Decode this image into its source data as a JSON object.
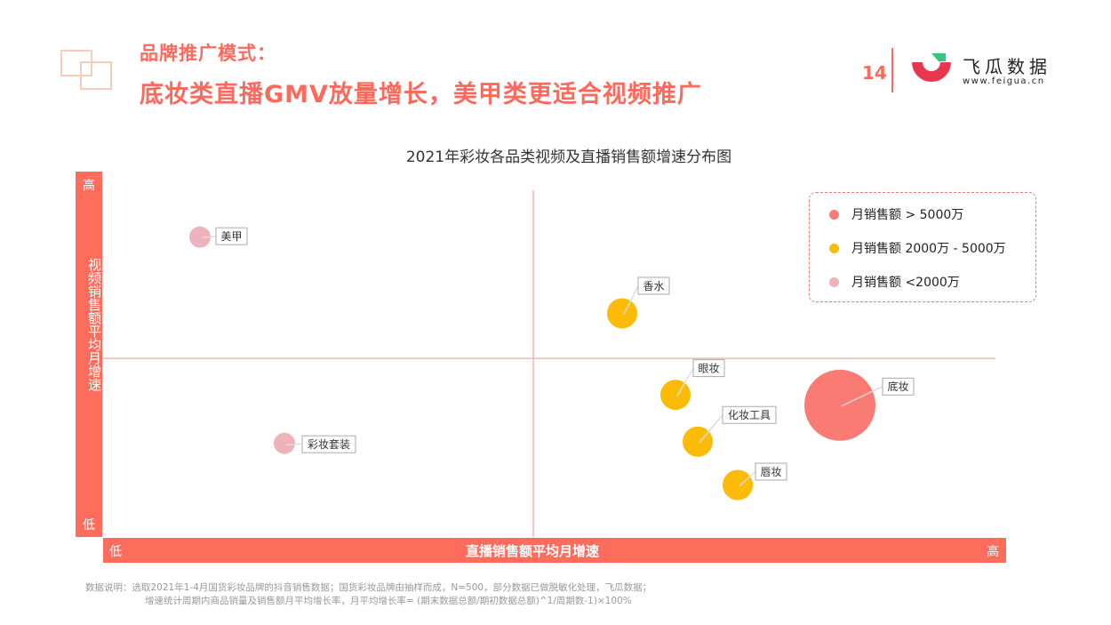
{
  "header": {
    "subtitle": "品牌推广模式：",
    "headline": "底妆类直播GMV放量增长，美甲类更适合视频推广",
    "page_number": "14"
  },
  "brand": {
    "name": "飞瓜数据",
    "url": "www.feigua.cn",
    "colors": {
      "accent": "#fb6a5c",
      "green": "#3ac47d",
      "red": "#e8364f"
    }
  },
  "chart_data": {
    "type": "scatter",
    "title": "2021年彩妆各品类视频及直播销售额增速分布图",
    "xlabel": "直播销售额平均月增速",
    "ylabel": "视频销售额平均月增速",
    "x_low": "低",
    "x_high": "高",
    "y_low": "低",
    "y_high": "高",
    "xlim": [
      0,
      100
    ],
    "ylim": [
      0,
      100
    ],
    "divider": {
      "x": 48,
      "y": 51.5
    },
    "legend_placement": "top-right",
    "legend": [
      {
        "label": "月销售额  > 5000万",
        "color": "#fa7a74"
      },
      {
        "label": "月销售额 2000万 - 5000万",
        "color": "#fcbb06"
      },
      {
        "label": "月销售额 <2000万",
        "color": "#eeb2ba"
      }
    ],
    "points": [
      {
        "label": "美甲",
        "x": 10.5,
        "y": 86.5,
        "tier": 2,
        "color": "#eeb2ba"
      },
      {
        "label": "香水",
        "x": 58.0,
        "y": 64.5,
        "tier": 1,
        "color": "#fcbb06"
      },
      {
        "label": "眼妆",
        "x": 64.0,
        "y": 41.0,
        "tier": 1,
        "color": "#fcbb06"
      },
      {
        "label": "底妆",
        "x": 82.5,
        "y": 38.0,
        "tier": 0,
        "color": "#fa7a74"
      },
      {
        "label": "化妆工具",
        "x": 66.5,
        "y": 27.5,
        "tier": 1,
        "color": "#fcbb06"
      },
      {
        "label": "彩妆套装",
        "x": 20.0,
        "y": 27.0,
        "tier": 2,
        "color": "#eeb2ba"
      },
      {
        "label": "唇妆",
        "x": 71.0,
        "y": 15.0,
        "tier": 1,
        "color": "#fcbb06"
      }
    ]
  },
  "footnote": {
    "line1": "数据说明：选取2021年1-4月国货彩妆品牌的抖音销售数据；国货彩妆品牌由抽样而成，N=500，部分数据已做脱敏化处理，飞瓜数据；",
    "line2": "增速统计周期内商品销量及销售额月平均增长率，月平均增长率= (期末数据总额/期初数据总额)^1/周期数-1)×100%"
  }
}
